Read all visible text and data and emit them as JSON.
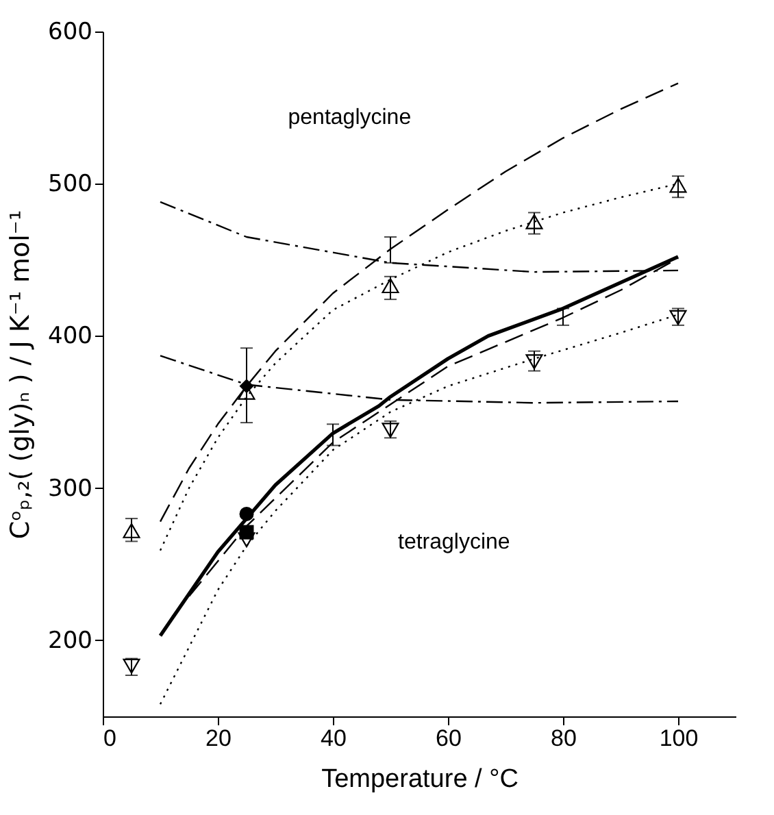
{
  "chart_data": {
    "type": "scatter",
    "xlabel": "Temperature / °C",
    "ylabel": "Cᵒₚ,₂( (gly)ₙ ) / J K⁻¹ mol⁻¹",
    "xlim": [
      0,
      110
    ],
    "xticks": [
      0,
      20,
      40,
      60,
      80,
      100
    ],
    "ylim": [
      150,
      600
    ],
    "yticks": [
      200,
      300,
      400,
      500,
      600
    ],
    "grid": false,
    "annotations": [
      "pentaglycine",
      "tetraglycine"
    ],
    "series": [
      {
        "type": "line",
        "line_style": "dashed",
        "color": "#000000",
        "x": [
          10,
          15,
          20,
          25,
          30,
          40,
          50,
          60,
          70,
          80,
          90,
          100
        ],
        "values": [
          278,
          313,
          342,
          367,
          390,
          428,
          457,
          483,
          508,
          530,
          549,
          566
        ],
        "errors": [
          null,
          null,
          null,
          null,
          null,
          null,
          [
            448,
            465
          ],
          null,
          null,
          null,
          null,
          null
        ]
      },
      {
        "type": "line",
        "line_style": "dotted",
        "color": "#000000",
        "x": [
          10,
          15,
          20,
          25,
          30,
          40,
          50,
          60,
          70,
          80,
          90,
          100
        ],
        "values": [
          259,
          300,
          333,
          360,
          382,
          417,
          437,
          455,
          469,
          481,
          491,
          500
        ]
      },
      {
        "type": "line",
        "line_style": "dashdot",
        "color": "#000000",
        "x": [
          10,
          25,
          50,
          75,
          100
        ],
        "values": [
          488,
          465,
          448,
          442,
          443
        ]
      },
      {
        "type": "line",
        "line_style": "dashdot",
        "color": "#000000",
        "x": [
          10,
          25,
          50,
          75,
          100
        ],
        "values": [
          387,
          368,
          358,
          356,
          357
        ]
      },
      {
        "type": "line",
        "line_style": "solid",
        "color": "#000000",
        "x": [
          10,
          20,
          25,
          30,
          40,
          48,
          50,
          60,
          67,
          80,
          90,
          100
        ],
        "values": [
          203,
          258,
          280,
          302,
          336,
          354,
          360,
          385,
          400,
          418,
          435,
          452
        ],
        "errors": [
          null,
          null,
          null,
          null,
          [
            328,
            342
          ],
          null,
          null,
          null,
          null,
          null,
          null,
          null
        ]
      },
      {
        "type": "line",
        "line_style": "dashed",
        "color": "#000000",
        "x": [
          12,
          25,
          40,
          50,
          60,
          80,
          90,
          100
        ],
        "values": [
          215,
          275,
          330,
          355,
          380,
          412,
          430,
          451
        ],
        "errors": [
          null,
          null,
          null,
          null,
          null,
          [
            407,
            418
          ],
          null,
          null
        ]
      },
      {
        "type": "line",
        "line_style": "dotted",
        "color": "#000000",
        "x": [
          10,
          20,
          25,
          30,
          40,
          50,
          60,
          75,
          90,
          100
        ],
        "values": [
          158,
          233,
          262,
          285,
          325,
          350,
          367,
          385,
          402,
          414
        ]
      },
      {
        "marker": "triangle",
        "color": "#000000",
        "x": [
          5,
          25,
          50,
          75,
          100
        ],
        "values": [
          272,
          363,
          433,
          475,
          499
        ],
        "errors": [
          [
            265,
            280
          ],
          null,
          [
            424,
            439
          ],
          [
            467,
            481
          ],
          [
            491,
            505
          ]
        ]
      },
      {
        "marker": "triangle-down",
        "color": "#000000",
        "x": [
          5,
          25,
          50,
          75,
          100
        ],
        "values": [
          183,
          266,
          338,
          383,
          412
        ],
        "errors": [
          [
            177,
            188
          ],
          null,
          [
            333,
            344
          ],
          [
            377,
            390
          ],
          [
            407,
            418
          ]
        ]
      },
      {
        "marker": "diamond",
        "color": "#000000",
        "x": [
          25
        ],
        "values": [
          367
        ],
        "errors": [
          [
            343,
            392
          ]
        ]
      },
      {
        "marker": "circle",
        "color": "#000000",
        "x": [
          25
        ],
        "values": [
          283
        ]
      },
      {
        "marker": "square",
        "color": "#000000",
        "x": [
          25
        ],
        "values": [
          271
        ]
      }
    ]
  }
}
